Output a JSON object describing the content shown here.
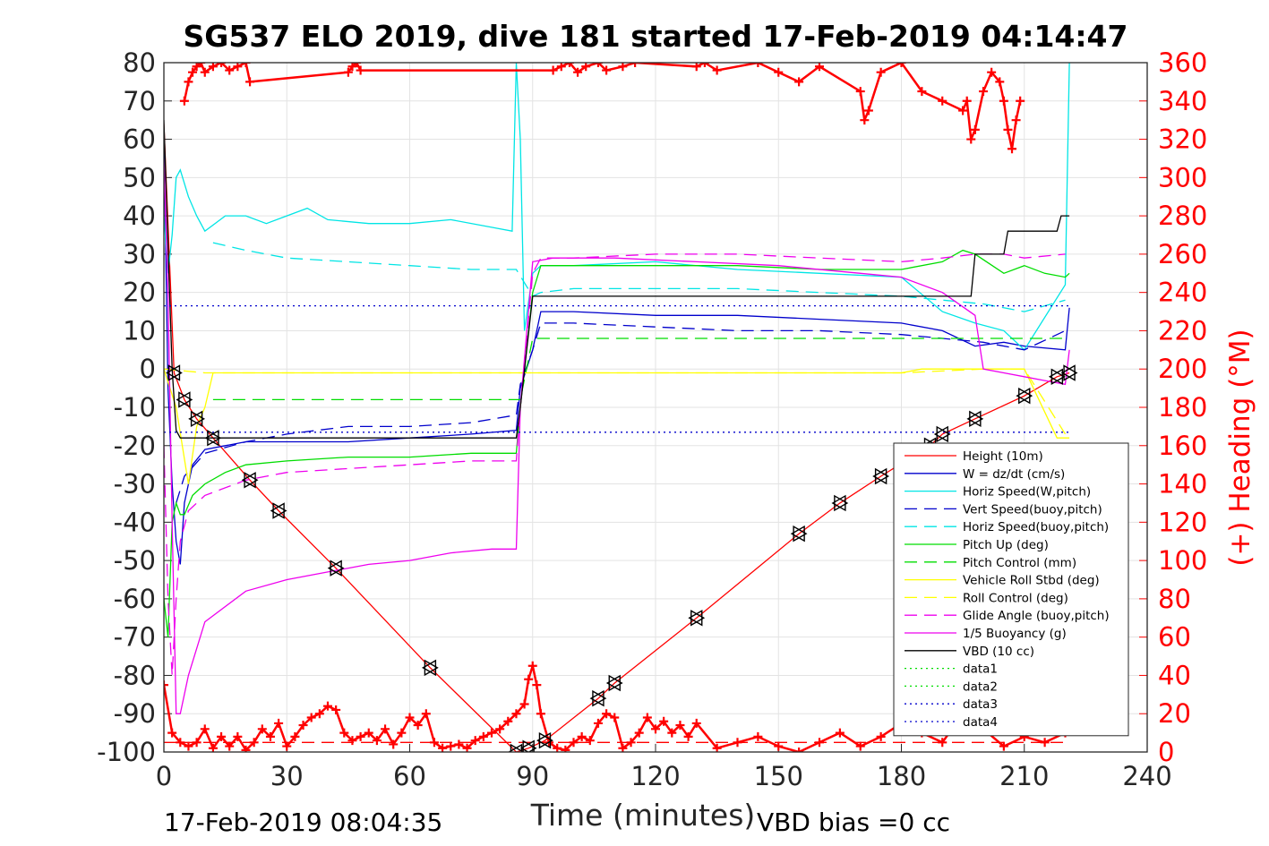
{
  "chart_data": {
    "type": "line",
    "title": "SG537 ELO 2019, dive 181 started 17-Feb-2019 04:14:47",
    "xlabel": "Time (minutes)",
    "ylabel_right": "(+) Heading (°M)",
    "xlim": [
      0,
      240
    ],
    "ylim": [
      -100,
      80
    ],
    "ylim_right": [
      0,
      360
    ],
    "x_ticks": [
      "0",
      "30",
      "60",
      "90",
      "120",
      "150",
      "180",
      "210",
      "240"
    ],
    "y_ticks": [
      "80",
      "70",
      "60",
      "50",
      "40",
      "30",
      "20",
      "10",
      "0",
      "-10",
      "-20",
      "-30",
      "-40",
      "-50",
      "-60",
      "-70",
      "-80",
      "-90",
      "-100"
    ],
    "y_ticks_right": [
      "360",
      "340",
      "320",
      "300",
      "280",
      "260",
      "240",
      "220",
      "200",
      "180",
      "160",
      "140",
      "120",
      "100",
      "80",
      "60",
      "40",
      "20",
      "0"
    ],
    "grid": true,
    "legend_position": "lower-right",
    "footer_left": "17-Feb-2019 08:04:35",
    "footer_right": "VBD bias =0 cc",
    "series": [
      {
        "name": "Height (10m)",
        "color": "#ff0000",
        "style": "solid",
        "marker": "triangle",
        "x": [
          0,
          2.5,
          5,
          8,
          12,
          21,
          28,
          42,
          65,
          86,
          89,
          93,
          106,
          110,
          130,
          155,
          165,
          175,
          187,
          190,
          198,
          210,
          218,
          221
        ],
        "y": [
          64,
          -1,
          -8,
          -13,
          -18,
          -29,
          -37,
          -52,
          -78,
          -100,
          -99,
          -97,
          -86,
          -82,
          -65,
          -43,
          -35,
          -28,
          -20,
          -17,
          -13,
          -7,
          -2,
          -1
        ]
      },
      {
        "name": "W = dz/dt (cm/s)",
        "color": "#0000cc",
        "style": "solid",
        "x": [
          0,
          1,
          2,
          3,
          4,
          5,
          7,
          10,
          15,
          20,
          30,
          45,
          60,
          75,
          86,
          87,
          90,
          92,
          100,
          120,
          140,
          160,
          180,
          190,
          198,
          205,
          210,
          220,
          221
        ],
        "y": [
          60,
          -5,
          -30,
          -45,
          -51,
          -35,
          -25,
          -21,
          -20,
          -19,
          -19,
          -19,
          -18,
          -17,
          -16,
          -5,
          5,
          15,
          15,
          14,
          14,
          13,
          12,
          10,
          6,
          7,
          6,
          5,
          16
        ]
      },
      {
        "name": "Horiz Speed(W,pitch)",
        "color": "#00e5e5",
        "style": "solid",
        "x": [
          0,
          1,
          2,
          3,
          4,
          6,
          8,
          10,
          15,
          20,
          25,
          30,
          35,
          40,
          50,
          60,
          70,
          80,
          85,
          86,
          87,
          88,
          90,
          92,
          100,
          120,
          140,
          160,
          180,
          190,
          198,
          205,
          210,
          220,
          221
        ],
        "y": [
          40,
          25,
          35,
          50,
          52,
          45,
          40,
          36,
          40,
          40,
          38,
          40,
          42,
          39,
          38,
          38,
          39,
          37,
          36,
          80,
          60,
          10,
          25,
          27,
          27,
          28,
          26,
          25,
          24,
          15,
          12,
          10,
          5,
          22,
          80
        ]
      },
      {
        "name": "Vert Speed(buoy,pitch)",
        "color": "#0000cc",
        "style": "dashed",
        "x": [
          3,
          5,
          10,
          20,
          30,
          45,
          60,
          75,
          86,
          87,
          90,
          92,
          100,
          120,
          140,
          160,
          180,
          190,
          200,
          210,
          220
        ],
        "y": [
          -35,
          -28,
          -22,
          -19,
          -17,
          -15,
          -15,
          -14,
          -12,
          -4,
          5,
          12,
          12,
          11,
          10,
          10,
          9,
          8,
          7,
          5,
          10
        ]
      },
      {
        "name": "Horiz Speed(buoy,pitch)",
        "color": "#00e5e5",
        "style": "dashed",
        "x": [
          12,
          20,
          30,
          45,
          60,
          75,
          86,
          90,
          92,
          100,
          120,
          140,
          160,
          180,
          200,
          210,
          220
        ],
        "y": [
          33,
          31,
          29,
          28,
          27,
          26,
          26,
          19,
          20,
          21,
          21,
          21,
          20,
          19,
          17,
          15,
          18
        ]
      },
      {
        "name": "Pitch Up (deg)",
        "color": "#00dd00",
        "style": "solid",
        "x": [
          0,
          1,
          2,
          3,
          4,
          5,
          7,
          10,
          15,
          20,
          30,
          45,
          60,
          75,
          86,
          87,
          90,
          92,
          100,
          120,
          140,
          160,
          180,
          190,
          195,
          198,
          205,
          210,
          215,
          220,
          221
        ],
        "y": [
          -60,
          -70,
          -40,
          -35,
          -38,
          -38,
          -33,
          -30,
          -27,
          -25,
          -24,
          -23,
          -23,
          -22,
          -22,
          -10,
          20,
          27,
          27,
          27,
          27,
          26,
          26,
          28,
          31,
          30,
          25,
          27,
          25,
          24,
          25
        ]
      },
      {
        "name": "Pitch Control (mm)",
        "color": "#00dd00",
        "style": "dashed",
        "x": [
          12,
          20,
          30,
          45,
          60,
          75,
          86,
          87,
          90,
          92,
          100,
          120,
          140,
          160,
          180,
          190,
          200,
          210,
          220
        ],
        "y": [
          -8,
          -8,
          -8,
          -8,
          -8,
          -8,
          -8,
          -8,
          8,
          8,
          8,
          8,
          8,
          8,
          8,
          8,
          8,
          8,
          8
        ]
      },
      {
        "name": "Vehicle Roll Stbd (deg)",
        "color": "#ffff00",
        "style": "solid",
        "x": [
          0,
          3,
          6,
          8,
          10,
          12,
          20,
          30,
          40,
          50,
          60,
          70,
          80,
          86,
          90,
          100,
          120,
          140,
          160,
          180,
          185,
          195,
          200,
          210,
          218,
          221
        ],
        "y": [
          0,
          -10,
          -30,
          -15,
          -10,
          -1,
          -1,
          -1,
          -1,
          -1,
          -1,
          -1,
          -1,
          -1,
          -1,
          -1,
          -1,
          -1,
          -1,
          -1,
          0,
          0,
          0,
          0,
          -18,
          -18
        ]
      },
      {
        "name": "Roll Control (deg)",
        "color": "#ffff00",
        "style": "dashed",
        "x": [
          0,
          10,
          30,
          60,
          86,
          92,
          100,
          120,
          140,
          160,
          180,
          200,
          210,
          220
        ],
        "y": [
          0,
          -1,
          -1,
          -1,
          -1,
          -1,
          -1,
          -1,
          -1,
          -1,
          -1,
          0,
          0,
          -17
        ]
      },
      {
        "name": "Glide Angle (buoy,pitch)",
        "color": "#ee00ee",
        "style": "dashed",
        "x": [
          0,
          1,
          2,
          3,
          4,
          6,
          10,
          20,
          30,
          45,
          60,
          75,
          86,
          87,
          90,
          92,
          100,
          120,
          140,
          160,
          180,
          190,
          198,
          205,
          210,
          220
        ],
        "y": [
          -20,
          -60,
          -80,
          -60,
          -45,
          -37,
          -33,
          -29,
          -27,
          -26,
          -25,
          -24,
          -24,
          -10,
          25,
          29,
          29,
          30,
          30,
          29,
          28,
          29,
          30,
          30,
          29,
          30
        ]
      },
      {
        "name": "1/5 Buoyancy (g)",
        "color": "#ee00ee",
        "style": "solid",
        "x": [
          0,
          1,
          2,
          3,
          4,
          6,
          10,
          20,
          30,
          40,
          50,
          60,
          70,
          80,
          86,
          87,
          90,
          95,
          110,
          130,
          150,
          170,
          180,
          190,
          198,
          200,
          205,
          210,
          215,
          220,
          221
        ],
        "y": [
          55,
          20,
          -40,
          -90,
          -90,
          -80,
          -66,
          -58,
          -55,
          -53,
          -51,
          -50,
          -48,
          -47,
          -47,
          -10,
          28,
          29,
          29,
          28,
          27,
          25,
          24,
          20,
          14,
          0,
          -1,
          -2,
          -3,
          -4,
          5
        ]
      },
      {
        "name": "VBD (10 cc)",
        "color": "#000000",
        "style": "solid",
        "x": [
          0,
          2,
          3,
          4,
          86,
          87,
          90,
          91,
          197,
          198,
          205,
          206,
          218,
          219,
          221
        ],
        "y": [
          65,
          0,
          -16,
          -18,
          -18,
          -10,
          19,
          19,
          19,
          30,
          30,
          36,
          36,
          40,
          40
        ]
      },
      {
        "name": "data1",
        "color": "#00dd00",
        "style": "dotted",
        "x": [],
        "y": []
      },
      {
        "name": "data2",
        "color": "#00dd00",
        "style": "dotted",
        "x": [],
        "y": []
      },
      {
        "name": "data3",
        "color": "#0000cc",
        "style": "dotted",
        "x": [
          0,
          221
        ],
        "y": [
          16.5,
          16.5
        ]
      },
      {
        "name": "data4",
        "color": "#0000cc",
        "style": "dotted",
        "x": [
          0,
          221
        ],
        "y": [
          -16.5,
          -16.5
        ]
      }
    ],
    "heading_series": {
      "axis": "right",
      "color": "#ff0000",
      "marker": "plus",
      "x": [
        0,
        2,
        4,
        6,
        8,
        10,
        12,
        14,
        16,
        18,
        20,
        22,
        24,
        26,
        28,
        30,
        32,
        34,
        36,
        38,
        40,
        42,
        44,
        46,
        48,
        50,
        52,
        54,
        56,
        58,
        60,
        62,
        64,
        66,
        68,
        70,
        72,
        74,
        76,
        78,
        80,
        82,
        84,
        86,
        88,
        89,
        90,
        91,
        92,
        94,
        96,
        98,
        100,
        102,
        104,
        106,
        108,
        110,
        112,
        114,
        116,
        118,
        120,
        122,
        124,
        126,
        128,
        130,
        135,
        140,
        145,
        150,
        155,
        160,
        165,
        170,
        175,
        180,
        185,
        190,
        195,
        200,
        205,
        210,
        215,
        220
      ],
      "y": [
        35,
        10,
        5,
        3,
        5,
        12,
        2,
        8,
        3,
        8,
        1,
        5,
        12,
        8,
        15,
        3,
        8,
        14,
        18,
        20,
        24,
        22,
        10,
        6,
        8,
        10,
        6,
        12,
        4,
        10,
        18,
        14,
        20,
        5,
        2,
        3,
        4,
        2,
        6,
        8,
        10,
        12,
        16,
        20,
        25,
        38,
        45,
        35,
        20,
        5,
        2,
        1,
        5,
        8,
        6,
        15,
        20,
        18,
        2,
        5,
        10,
        18,
        12,
        16,
        10,
        14,
        8,
        15,
        2,
        5,
        8,
        3,
        0,
        5,
        10,
        3,
        8,
        15,
        10,
        5,
        20,
        12,
        3,
        8,
        5,
        10
      ]
    },
    "heading_top_series": {
      "axis": "right",
      "color": "#ff0000",
      "marker": "plus",
      "x": [
        5,
        6,
        7,
        8,
        9,
        10,
        12,
        14,
        16,
        18,
        20,
        21,
        45,
        46,
        47,
        48,
        95,
        97,
        99,
        101,
        103,
        106,
        108,
        112,
        115,
        130,
        132,
        135,
        145,
        150,
        155,
        160,
        170,
        171,
        172,
        175,
        180,
        185,
        190,
        195,
        196,
        197,
        198,
        200,
        202,
        204,
        205,
        206,
        207,
        208,
        209
      ],
      "y": [
        340,
        350,
        355,
        358,
        360,
        355,
        358,
        360,
        356,
        358,
        360,
        350,
        355,
        358,
        360,
        356,
        356,
        358,
        360,
        355,
        358,
        360,
        356,
        358,
        360,
        358,
        360,
        356,
        360,
        355,
        350,
        358,
        345,
        330,
        335,
        355,
        360,
        345,
        340,
        335,
        340,
        320,
        325,
        345,
        355,
        350,
        340,
        325,
        315,
        330,
        340
      ]
    }
  }
}
